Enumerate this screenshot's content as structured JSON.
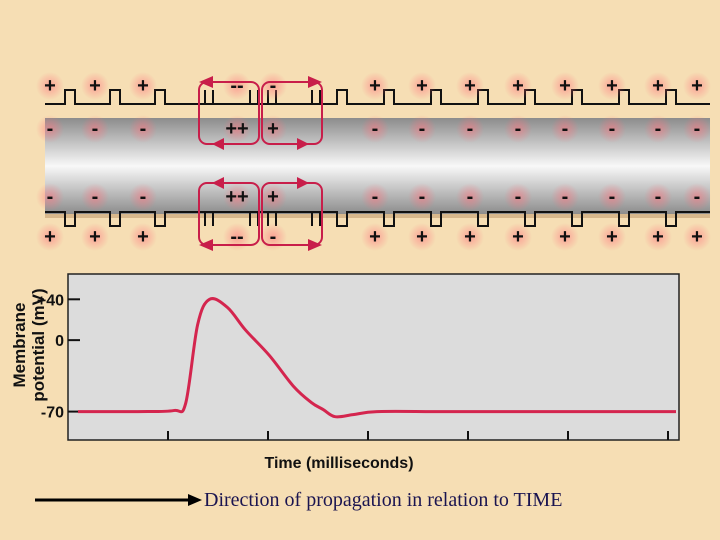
{
  "axon": {
    "top_outside": [
      "+",
      "+",
      "+",
      "--",
      "-",
      "+",
      "+",
      "+",
      "+",
      "+",
      "+",
      "+",
      "+"
    ],
    "top_inside": [
      "-",
      "-",
      "-",
      "++",
      "+",
      "-",
      "-",
      "-",
      "-",
      "-",
      "-",
      "-",
      "-"
    ],
    "bottom_inside": [
      "-",
      "-",
      "-",
      "++",
      "+",
      "-",
      "-",
      "-",
      "-",
      "-",
      "-",
      "-",
      "-"
    ],
    "bottom_outside": [
      "+",
      "+",
      "+",
      "--",
      "-",
      "+",
      "+",
      "+",
      "+",
      "+",
      "+",
      "+",
      "+"
    ]
  },
  "plot": {
    "ylabel_line1": "Membrane",
    "ylabel_line2": "potential (mV)",
    "xlabel": "Time (milliseconds)",
    "yticks": [
      "+40",
      "0",
      "-70"
    ]
  },
  "chart_data": {
    "type": "line",
    "title": "",
    "xlabel": "Time (milliseconds)",
    "ylabel": "Membrane potential (mV)",
    "ylim": [
      -90,
      55
    ],
    "x": [
      0,
      1,
      1.6,
      1.8,
      2.0,
      2.2,
      2.5,
      2.8,
      3.2,
      3.6,
      3.9,
      4.1,
      4.3,
      4.6,
      5,
      6,
      7,
      8,
      9,
      10
    ],
    "series": [
      {
        "values": [
          -70,
          -70,
          -69,
          -62,
          15,
          40,
          32,
          10,
          -15,
          -45,
          -61,
          -68,
          -75,
          -73,
          -70,
          -70,
          -70,
          -70,
          -70,
          -70
        ]
      }
    ],
    "color": "#d4254e"
  },
  "caption": "Direction of propagation in relation to TIME",
  "colors": {
    "accent": "#c81e4a",
    "arrow": "#000000"
  }
}
